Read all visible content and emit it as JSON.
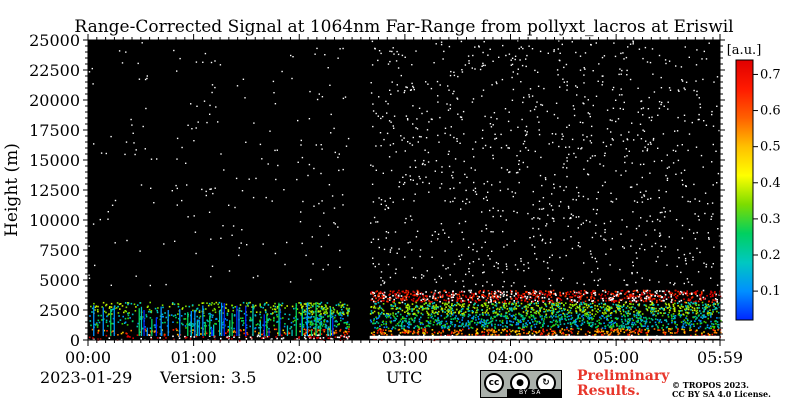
{
  "chart_data": {
    "type": "heatmap",
    "title": "Range-Corrected Signal at 1064nm Far-Range from pollyxt_lacros at Eriswil",
    "ylabel": "Height (m)",
    "xlabel": "UTC",
    "x_ticks": [
      "00:00",
      "01:00",
      "02:00",
      "03:00",
      "04:00",
      "05:00",
      "05:59"
    ],
    "x_range_minutes": [
      0,
      359
    ],
    "y_ticks": [
      0,
      2500,
      5000,
      7500,
      10000,
      12500,
      15000,
      17500,
      20000,
      22500,
      25000
    ],
    "ylim": [
      0,
      25000
    ],
    "colorbar": {
      "unit": "[a.u.]",
      "ticks": [
        0.1,
        0.2,
        0.3,
        0.4,
        0.5,
        0.6,
        0.7
      ],
      "range": [
        0.02,
        0.74
      ],
      "colors": [
        "#0026ff",
        "#0090ff",
        "#00c8c0",
        "#00d060",
        "#7ddc00",
        "#ffff00",
        "#ffc000",
        "#ff6000",
        "#ff1a00",
        "#e00000"
      ]
    },
    "no_data_gap_minutes": [
      [
        148,
        160
      ]
    ],
    "boundary_layer_top_m": 4000,
    "grid": false
  },
  "footer": {
    "date": "2023-01-29",
    "version": "Version: 3.5",
    "utc": "UTC",
    "preliminary_line1": "Preliminary",
    "preliminary_line2": "Results.",
    "copyright_line1": "© TROPOS 2023.",
    "copyright_line2": "CC BY SA 4.0 License.",
    "license_icons": [
      "cc-icon",
      "by-icon",
      "sa-icon"
    ],
    "license_strip": "BY  SA"
  }
}
